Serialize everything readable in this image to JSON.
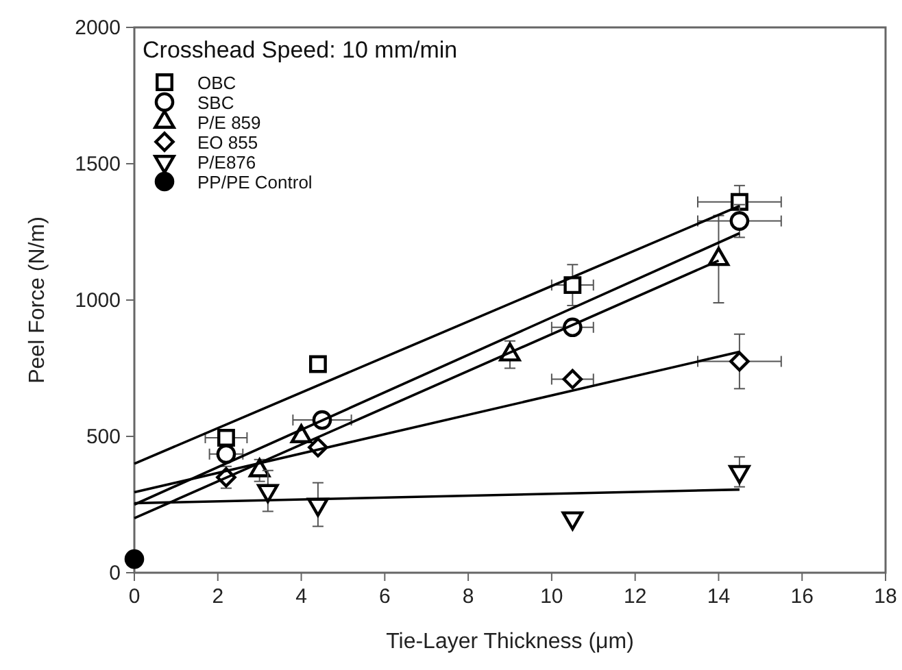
{
  "chart_data": {
    "type": "scatter",
    "xlabel": "Tie-Layer Thickness (μm)",
    "ylabel": "Peel Force (N/m)",
    "annotations": [
      "Crosshead Speed: 10 mm/min"
    ],
    "xlim": [
      0,
      18
    ],
    "xticks": [
      0,
      2,
      4,
      6,
      8,
      10,
      12,
      14,
      16,
      18
    ],
    "ylim": [
      0,
      2000
    ],
    "yticks": [
      0,
      500,
      1000,
      1500,
      2000
    ],
    "grid": false,
    "legend": "top left",
    "series": [
      {
        "name": "OBC",
        "marker": "square",
        "color": "#000000",
        "x": [
          2.2,
          4.4,
          10.5,
          14.5
        ],
        "values": [
          495,
          765,
          1055,
          1360
        ],
        "errors": [
          null,
          null,
          75,
          60
        ],
        "xerrors": [
          0.5,
          null,
          0.5,
          1.0
        ]
      },
      {
        "name": "SBC",
        "marker": "circle",
        "color": "#000000",
        "x": [
          2.2,
          4.5,
          10.5,
          14.5
        ],
        "values": [
          435,
          560,
          900,
          1290
        ],
        "errors": [
          null,
          null,
          null,
          60
        ],
        "xerrors": [
          0.4,
          0.7,
          0.5,
          1.0
        ]
      },
      {
        "name": "P/E 859",
        "marker": "triangle",
        "color": "#000000",
        "x": [
          3.0,
          4.0,
          9.0,
          14.0
        ],
        "values": [
          375,
          500,
          800,
          1150
        ],
        "errors": [
          40,
          null,
          50,
          160
        ],
        "xerrors": [
          null,
          null,
          null,
          null
        ]
      },
      {
        "name": "EO 855",
        "marker": "diamond",
        "color": "#000000",
        "x": [
          2.2,
          4.4,
          10.5,
          14.5
        ],
        "values": [
          350,
          460,
          710,
          775
        ],
        "errors": [
          40,
          null,
          null,
          100
        ],
        "xerrors": [
          null,
          null,
          0.5,
          1.0
        ]
      },
      {
        "name": "P/E876",
        "marker": "triangle-down",
        "color": "#000000",
        "x": [
          3.2,
          4.4,
          10.5,
          14.5
        ],
        "values": [
          300,
          250,
          200,
          370
        ],
        "errors": [
          75,
          80,
          null,
          55
        ],
        "xerrors": [
          null,
          null,
          null,
          null
        ]
      },
      {
        "name": "PP/PE Control",
        "color": "#000000",
        "x": [
          0
        ],
        "values": [
          50
        ]
      },
      {
        "type": "line",
        "color": "#000000",
        "x": [
          0,
          14.5
        ],
        "values": [
          400,
          1345
        ]
      },
      {
        "type": "line",
        "color": "#000000",
        "x": [
          0,
          14.5
        ],
        "values": [
          250,
          1245
        ]
      },
      {
        "type": "line",
        "color": "#000000",
        "x": [
          0,
          14.0
        ],
        "values": [
          200,
          1145
        ]
      },
      {
        "type": "line",
        "color": "#000000",
        "x": [
          0,
          14.5
        ],
        "values": [
          295,
          810
        ]
      },
      {
        "type": "line",
        "color": "#000000",
        "x": [
          0,
          14.5
        ],
        "values": [
          255,
          305
        ]
      }
    ]
  }
}
